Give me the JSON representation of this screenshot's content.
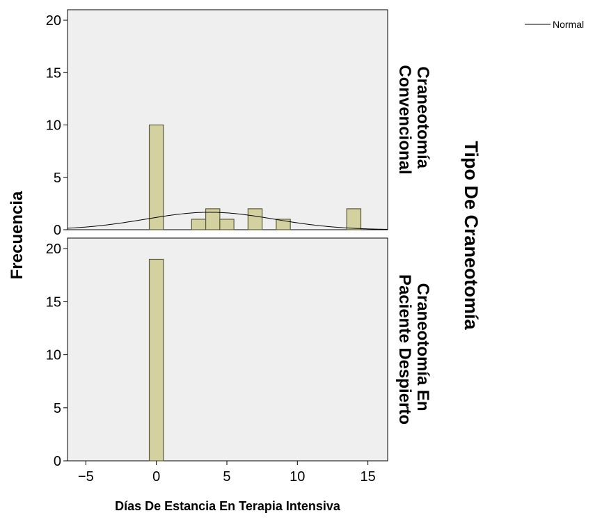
{
  "chart_data": {
    "type": "bar",
    "subtype": "histogram with normal curve, faceted",
    "xlabel": "Días De Estancia En Terapia Intensiva",
    "ylabel": "Frecuencia",
    "facet_title": "Tipo De Craneotomía",
    "xlim": [
      -6.3,
      16.4
    ],
    "ylim": [
      0,
      21
    ],
    "x_ticks": [
      -5,
      0,
      5,
      10,
      15
    ],
    "y_ticks": [
      0,
      5,
      10,
      15,
      20
    ],
    "bin_width": 1,
    "grid": false,
    "legend": {
      "position": "top-right",
      "entries": [
        "Normal"
      ]
    },
    "colors": {
      "bar_fill": "#d4d1a0",
      "bar_stroke": "#5a5a3a",
      "panel_bg": "#efefef",
      "curve": "#000000"
    },
    "panels": [
      {
        "label": [
          "Craneotomía",
          "Convencional"
        ],
        "bins": [
          {
            "x": 0,
            "count": 10
          },
          {
            "x": 3,
            "count": 1
          },
          {
            "x": 4,
            "count": 2
          },
          {
            "x": 5,
            "count": 1
          },
          {
            "x": 7,
            "count": 2
          },
          {
            "x": 9,
            "count": 1
          },
          {
            "x": 14,
            "count": 2
          }
        ],
        "normal": {
          "mean": 3.79,
          "sd": 4.55,
          "n": 19
        }
      },
      {
        "label": [
          "Craneotomía En",
          "Paciente Despierto"
        ],
        "bins": [
          {
            "x": 0,
            "count": 19
          }
        ],
        "normal": null
      }
    ]
  }
}
